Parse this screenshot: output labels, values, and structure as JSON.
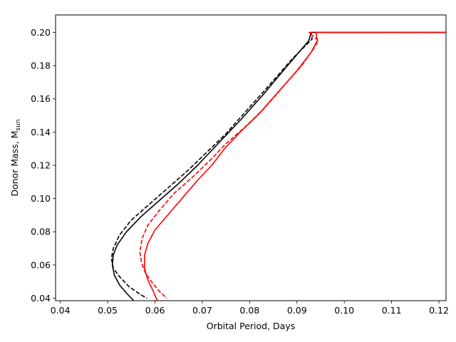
{
  "chart_data": {
    "type": "line",
    "title": "",
    "xlabel": "Orbital Period, Days",
    "ylabel_main": "Donor Mass, M",
    "ylabel_sub": "sun",
    "xlim": [
      0.039,
      0.1215
    ],
    "ylim": [
      0.0385,
      0.2105
    ],
    "xticks": [
      0.04,
      0.05,
      0.06,
      0.07,
      0.08,
      0.09,
      0.1,
      0.11,
      0.12
    ],
    "xtick_labels": [
      "0.04",
      "0.05",
      "0.06",
      "0.07",
      "0.08",
      "0.09",
      "0.10",
      "0.11",
      "0.12"
    ],
    "yticks": [
      0.04,
      0.06,
      0.08,
      0.1,
      0.12,
      0.14,
      0.16,
      0.18,
      0.2
    ],
    "ytick_labels": [
      "0.04",
      "0.06",
      "0.08",
      "0.10",
      "0.12",
      "0.14",
      "0.16",
      "0.18",
      "0.20"
    ],
    "grid": false,
    "legend": "none",
    "series": [
      {
        "color": "#000000",
        "dash": false,
        "points": [
          [
            0.1215,
            0.2
          ],
          [
            0.093,
            0.2
          ],
          [
            0.0925,
            0.195
          ],
          [
            0.088,
            0.18
          ],
          [
            0.083,
            0.163
          ],
          [
            0.078,
            0.147
          ],
          [
            0.073,
            0.132
          ],
          [
            0.069,
            0.12
          ],
          [
            0.065,
            0.109
          ],
          [
            0.061,
            0.099
          ],
          [
            0.057,
            0.089
          ],
          [
            0.054,
            0.08
          ],
          [
            0.052,
            0.072
          ],
          [
            0.0512,
            0.066
          ],
          [
            0.051,
            0.06
          ],
          [
            0.0514,
            0.054
          ],
          [
            0.0525,
            0.048
          ],
          [
            0.054,
            0.043
          ],
          [
            0.0555,
            0.0385
          ]
        ]
      },
      {
        "color": "#000000",
        "dash": true,
        "points": [
          [
            0.1215,
            0.2
          ],
          [
            0.093,
            0.2
          ],
          [
            0.0932,
            0.196
          ],
          [
            0.089,
            0.184
          ],
          [
            0.085,
            0.171
          ],
          [
            0.08,
            0.155
          ],
          [
            0.075,
            0.139
          ],
          [
            0.071,
            0.128
          ],
          [
            0.067,
            0.117
          ],
          [
            0.063,
            0.107
          ],
          [
            0.059,
            0.097
          ],
          [
            0.055,
            0.087
          ],
          [
            0.0525,
            0.078
          ],
          [
            0.0512,
            0.07
          ],
          [
            0.0508,
            0.064
          ],
          [
            0.0512,
            0.058
          ],
          [
            0.0525,
            0.053
          ],
          [
            0.0545,
            0.047
          ],
          [
            0.057,
            0.042
          ],
          [
            0.0583,
            0.04
          ]
        ]
      },
      {
        "color": "#ff0000",
        "dash": false,
        "points": [
          [
            0.1215,
            0.2
          ],
          [
            0.094,
            0.2
          ],
          [
            0.0943,
            0.195
          ],
          [
            0.093,
            0.188
          ],
          [
            0.09,
            0.177
          ],
          [
            0.086,
            0.164
          ],
          [
            0.082,
            0.151
          ],
          [
            0.078,
            0.14
          ],
          [
            0.075,
            0.131
          ],
          [
            0.072,
            0.12
          ],
          [
            0.069,
            0.111
          ],
          [
            0.066,
            0.101
          ],
          [
            0.063,
            0.091
          ],
          [
            0.06,
            0.081
          ],
          [
            0.0585,
            0.073
          ],
          [
            0.0578,
            0.066
          ],
          [
            0.0578,
            0.058
          ],
          [
            0.0585,
            0.051
          ],
          [
            0.0595,
            0.045
          ],
          [
            0.0605,
            0.0385
          ]
        ]
      },
      {
        "color": "#ff0000",
        "dash": true,
        "points": [
          [
            0.1215,
            0.2
          ],
          [
            0.0925,
            0.2
          ],
          [
            0.0945,
            0.195
          ],
          [
            0.0935,
            0.19
          ],
          [
            0.091,
            0.18
          ],
          [
            0.087,
            0.167
          ],
          [
            0.083,
            0.154
          ],
          [
            0.079,
            0.143
          ],
          [
            0.075,
            0.133
          ],
          [
            0.072,
            0.124
          ],
          [
            0.068,
            0.113
          ],
          [
            0.064,
            0.103
          ],
          [
            0.061,
            0.093
          ],
          [
            0.0585,
            0.084
          ],
          [
            0.0573,
            0.076
          ],
          [
            0.0568,
            0.068
          ],
          [
            0.0572,
            0.061
          ],
          [
            0.058,
            0.055
          ],
          [
            0.0595,
            0.049
          ],
          [
            0.061,
            0.044
          ],
          [
            0.0625,
            0.04
          ]
        ]
      }
    ]
  }
}
